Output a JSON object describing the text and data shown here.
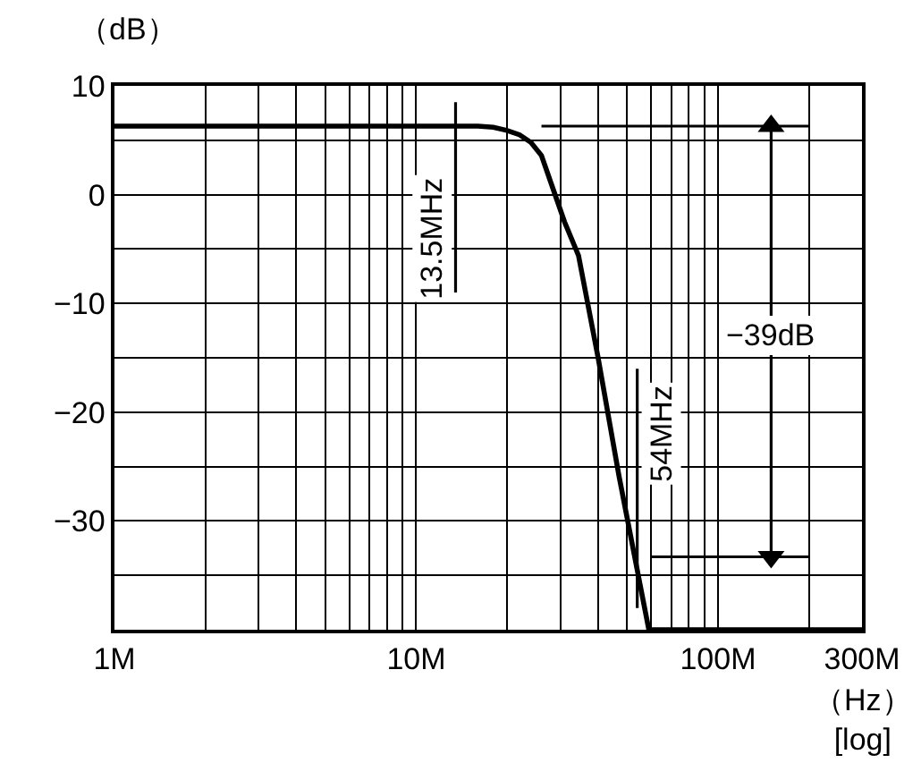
{
  "chart_data": {
    "type": "line",
    "xlabel": "（Hz）\n[log]",
    "ylabel": "（dB）",
    "log": "x",
    "grid": true,
    "xlim": [
      1,
      300
    ],
    "ylim": [
      -40,
      10
    ],
    "xticks": [
      {
        "value": 1,
        "label": "1M"
      },
      {
        "value": 2,
        "label": null
      },
      {
        "value": 3,
        "label": null
      },
      {
        "value": 4,
        "label": null
      },
      {
        "value": 5,
        "label": null
      },
      {
        "value": 6,
        "label": null
      },
      {
        "value": 7,
        "label": null
      },
      {
        "value": 8,
        "label": null
      },
      {
        "value": 9,
        "label": null
      },
      {
        "value": 10,
        "label": "10M"
      },
      {
        "value": 20,
        "label": null
      },
      {
        "value": 30,
        "label": null
      },
      {
        "value": 40,
        "label": null
      },
      {
        "value": 50,
        "label": null
      },
      {
        "value": 60,
        "label": null
      },
      {
        "value": 70,
        "label": null
      },
      {
        "value": 80,
        "label": null
      },
      {
        "value": 90,
        "label": null
      },
      {
        "value": 100,
        "label": "100M"
      },
      {
        "value": 200,
        "label": null
      },
      {
        "value": 300,
        "label": "300M"
      }
    ],
    "yticks": [
      {
        "value": -40,
        "label": null
      },
      {
        "value": -35,
        "label": null
      },
      {
        "value": -30,
        "label": "−30"
      },
      {
        "value": -25,
        "label": null
      },
      {
        "value": -20,
        "label": "−20"
      },
      {
        "value": -15,
        "label": null
      },
      {
        "value": -10,
        "label": "−10"
      },
      {
        "value": -5,
        "label": null
      },
      0,
      {
        "value": 5,
        "label": null
      },
      10
    ],
    "series": [
      {
        "color": "#000000",
        "x": [
          1,
          16,
          18,
          20,
          22,
          24,
          26,
          28.6,
          31,
          34.5,
          40,
          47,
          59,
          300
        ],
        "values": [
          6.3,
          6.3,
          6.2,
          5.9,
          5.5,
          4.8,
          3.6,
          0.3,
          -2.5,
          -5.6,
          -14.9,
          -25.9,
          -40,
          -40
        ]
      },
      {
        "color": "#000000",
        "x": [
          13.5,
          13.5
        ],
        "values": [
          8.5,
          -9
        ]
      },
      {
        "color": "#000000",
        "x": [
          54,
          54
        ],
        "values": [
          -16,
          -38
        ]
      },
      {
        "color": "#000000",
        "x": [
          26,
          200
        ],
        "values": [
          6.3,
          6.3
        ]
      },
      {
        "color": "#000000",
        "x": [
          60,
          200
        ],
        "values": [
          -33.3,
          -33.3
        ]
      },
      {
        "color": "#000000",
        "x": [
          150,
          150
        ],
        "values": [
          6.3,
          -33.3
        ],
        "marker": "triangle"
      }
    ],
    "annotations": [
      {
        "text": "13.5MHz",
        "x": 13.5,
        "y": -4
      },
      {
        "text": "54MHz",
        "x": 54,
        "y": -22
      },
      {
        "text": "−39dB",
        "x": 150,
        "y": -13
      }
    ]
  }
}
